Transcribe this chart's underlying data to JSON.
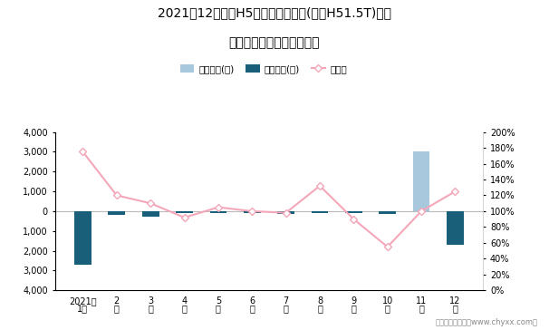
{
  "title_line1": "2021年12月红旗H5旗下最畅销轿车(红旗H51.5T)近一",
  "title_line2": "年库存情况及产销率统计图",
  "months_line1": [
    "2021年",
    "2",
    "3",
    "4",
    "5",
    "6",
    "7",
    "8",
    "9",
    "10",
    "11",
    "12"
  ],
  "months_line2": [
    "1月",
    "月",
    "月",
    "月",
    "月",
    "月",
    "月",
    "月",
    "月",
    "月",
    "月",
    "月"
  ],
  "jiiya_stock": [
    0,
    0,
    0,
    0,
    0,
    0,
    0,
    0,
    0,
    0,
    3000,
    0
  ],
  "qingcang_stock": [
    -2700,
    -200,
    -280,
    -80,
    -80,
    -80,
    -150,
    -80,
    -80,
    -150,
    0,
    -1700
  ],
  "production_rate": [
    1.75,
    1.2,
    1.1,
    0.92,
    1.05,
    1.0,
    0.98,
    1.32,
    0.9,
    0.55,
    1.0,
    1.25
  ],
  "bar_color_jiiya": "#a8c8de",
  "bar_color_qingcang": "#1a5f7a",
  "line_color": "#f4a7b9",
  "line_marker_fill": "white",
  "ylim_left": [
    -4000,
    4000
  ],
  "ylim_right": [
    0,
    2.0
  ],
  "yticks_left": [
    -4000,
    -3000,
    -2000,
    -1000,
    0,
    1000,
    2000,
    3000,
    4000
  ],
  "yticks_right": [
    0.0,
    0.2,
    0.4,
    0.6,
    0.8,
    1.0,
    1.2,
    1.4,
    1.6,
    1.8,
    2.0
  ],
  "legend_labels": [
    "积压库存(辆)",
    "清仓库存(辆)",
    "产销率"
  ],
  "footer": "制图：智研咨询（www.chyxx.com）"
}
